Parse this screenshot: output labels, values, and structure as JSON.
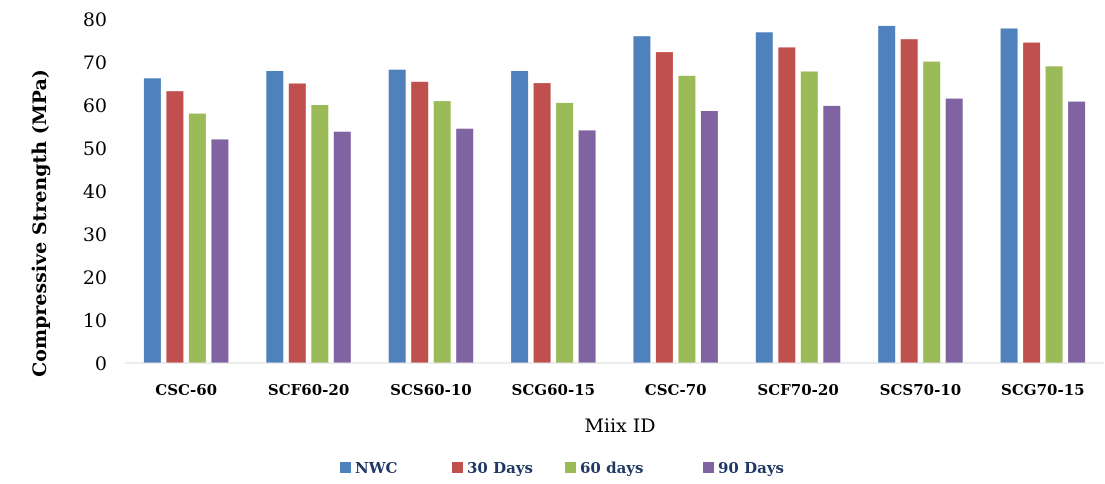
{
  "chart_data": {
    "type": "bar",
    "title": "",
    "xlabel": "Miix ID",
    "ylabel": "Compressive Strength (MPa)",
    "ylim": [
      0,
      80
    ],
    "yticks": [
      "0",
      "10",
      "20",
      "30",
      "40",
      "50",
      "60",
      "70",
      "80"
    ],
    "grid": false,
    "legend_position": "bottom",
    "categories": [
      "CSC-60",
      "SCF60-20",
      "SCS60-10",
      "SCG60-15",
      "CSC-70",
      "SCF70-20",
      "SCS70-10",
      "SCG70-15"
    ],
    "series": [
      {
        "name": "NWC",
        "color": "#4f81bd",
        "values": [
          66.2,
          67.9,
          68.2,
          67.9,
          76.0,
          76.9,
          78.4,
          77.8
        ]
      },
      {
        "name": "30 Days",
        "color": "#c0504d",
        "values": [
          63.2,
          65.0,
          65.4,
          65.1,
          72.3,
          73.4,
          75.3,
          74.5
        ]
      },
      {
        "name": "60 days",
        "color": "#9bbb59",
        "values": [
          58.0,
          60.0,
          60.9,
          60.5,
          66.8,
          67.8,
          70.1,
          69.0
        ]
      },
      {
        "name": "90 Days",
        "color": "#8064a2",
        "values": [
          52.0,
          53.8,
          54.5,
          54.1,
          58.6,
          59.8,
          61.5,
          60.8
        ]
      }
    ]
  }
}
